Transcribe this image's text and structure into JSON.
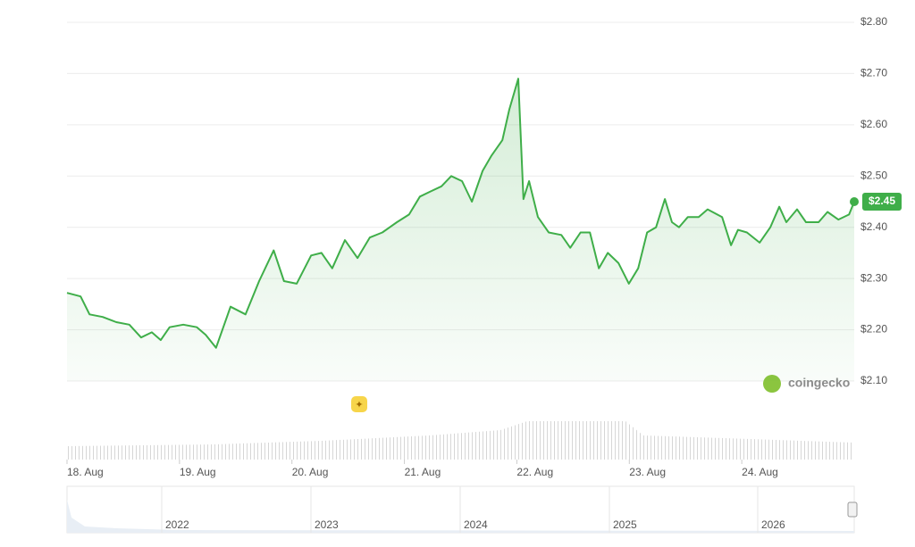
{
  "chart_data": {
    "type": "line",
    "x": [
      0,
      2.9,
      4.8,
      7.6,
      10.5,
      13.3,
      15.8,
      18.1,
      20,
      21.9,
      24.8,
      27.7,
      29.6,
      31.8,
      34.9,
      38.1,
      41,
      44.1,
      46.3,
      49,
      52.1,
      54.3,
      56.6,
      59.3,
      62,
      64.6,
      67.3,
      70.4,
      73,
      75.3,
      77.6,
      79.9,
      82,
      84.3,
      86.4,
      88.7,
      90.6,
      92.9,
      94.4,
      96.3,
      97.4,
      98.6,
      100.5,
      102.8,
      105.5,
      107.4,
      109.6,
      111.6,
      113.5,
      115.4,
      117.7,
      119.9,
      121.9,
      123.8,
      125.7,
      127.6,
      129.1,
      130.6,
      132.5,
      134.8,
      136.7,
      139.8,
      141.7,
      143.2,
      145.1,
      147.8,
      150.1,
      152,
      153.5,
      155.8,
      157.7,
      160.4,
      162.3,
      164.6,
      166.9,
      168
    ],
    "series": [
      {
        "color": "#3fae49",
        "values": [
          2.272,
          2.265,
          2.23,
          2.225,
          2.215,
          2.21,
          2.185,
          2.195,
          2.18,
          2.205,
          2.21,
          2.205,
          2.19,
          2.165,
          2.245,
          2.23,
          2.295,
          2.355,
          2.295,
          2.29,
          2.345,
          2.35,
          2.32,
          2.375,
          2.34,
          2.38,
          2.39,
          2.41,
          2.425,
          2.46,
          2.47,
          2.48,
          2.5,
          2.49,
          2.45,
          2.51,
          2.54,
          2.57,
          2.63,
          2.69,
          2.455,
          2.49,
          2.42,
          2.39,
          2.385,
          2.36,
          2.39,
          2.39,
          2.32,
          2.35,
          2.33,
          2.29,
          2.32,
          2.39,
          2.4,
          2.455,
          2.41,
          2.4,
          2.42,
          2.42,
          2.435,
          2.42,
          2.365,
          2.395,
          2.39,
          2.37,
          2.4,
          2.44,
          2.41,
          2.435,
          2.41,
          2.41,
          2.43,
          2.415,
          2.425,
          2.45
        ]
      }
    ],
    "current_price": {
      "value": 2.45,
      "label": "$2.45"
    },
    "xlim": [
      0,
      168
    ],
    "xticks": [
      {
        "value": 0,
        "label": "18. Aug"
      },
      {
        "value": 24,
        "label": "19. Aug"
      },
      {
        "value": 48,
        "label": "20. Aug"
      },
      {
        "value": 72,
        "label": "21. Aug"
      },
      {
        "value": 96,
        "label": "22. Aug"
      },
      {
        "value": 120,
        "label": "23. Aug"
      },
      {
        "value": 144,
        "label": "24. Aug"
      }
    ],
    "ylim": [
      2.1,
      2.8
    ],
    "yticks": [
      {
        "value": 2.1,
        "label": "$2.10"
      },
      {
        "value": 2.2,
        "label": "$2.20"
      },
      {
        "value": 2.3,
        "label": "$2.30"
      },
      {
        "value": 2.4,
        "label": "$2.40"
      },
      {
        "value": 2.5,
        "label": "$2.50"
      },
      {
        "value": 2.6,
        "label": "$2.60"
      },
      {
        "value": 2.7,
        "label": "$2.70"
      },
      {
        "value": 2.8,
        "label": "$2.80"
      }
    ],
    "grid": true,
    "brand": "coingecko",
    "navigator": {
      "labels": [
        "2022",
        "2023",
        "2024",
        "2025",
        "2026"
      ]
    }
  }
}
